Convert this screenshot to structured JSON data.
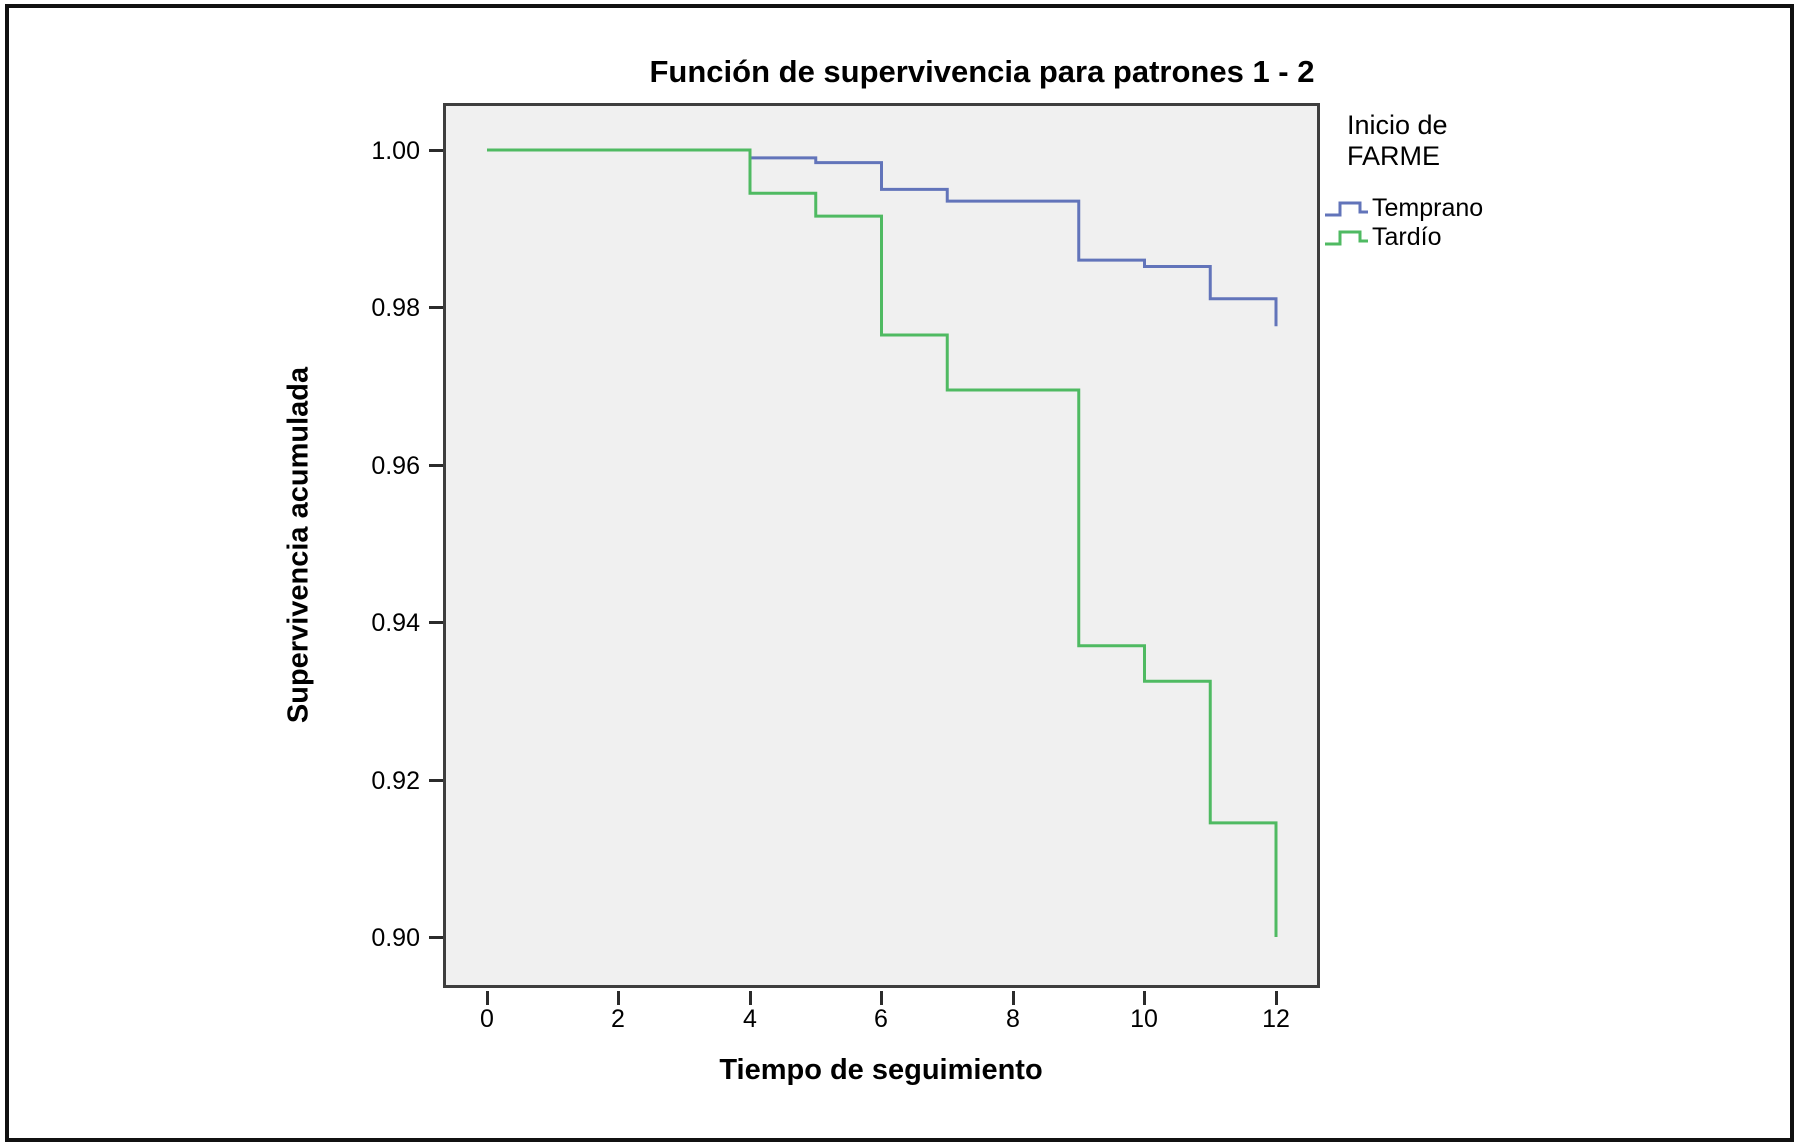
{
  "figure": {
    "title": "Función de supervivencia para patrones 1 - 2"
  },
  "axes": {
    "x": {
      "label": "Tiempo de seguimiento",
      "ticks": [
        "0",
        "2",
        "4",
        "6",
        "8",
        "10",
        "12"
      ]
    },
    "y": {
      "label": "Supervivencia acumulada",
      "ticks": [
        "1.00",
        "0.98",
        "0.96",
        "0.94",
        "0.92",
        "0.90"
      ]
    }
  },
  "legend": {
    "title_line1": "Inicio de",
    "title_line2": "FARME",
    "items": [
      {
        "label": "Temprano",
        "color": "#6274ba"
      },
      {
        "label": "Tardío",
        "color": "#4fba62"
      }
    ]
  },
  "chart_data": {
    "type": "line",
    "subtype": "kaplan-meier-step-survival",
    "title": "Función de supervivencia para patrones 1 - 2",
    "xlabel": "Tiempo de seguimiento",
    "ylabel": "Supervivencia acumulada",
    "xlim": [
      -0.67,
      12.67
    ],
    "ylim": [
      0.8935,
      1.0065
    ],
    "xticks": [
      0,
      2,
      4,
      6,
      8,
      10,
      12
    ],
    "yticks": [
      1.0,
      0.98,
      0.96,
      0.94,
      0.92,
      0.9
    ],
    "grid": false,
    "plot_background": "#f0f0f0",
    "legend_position": "right",
    "legend_title": "Inicio de FARME",
    "step_format": "[time, cumulative_survival_after_event]; curve is flat between listed times and ends with the drop at t=12",
    "series": [
      {
        "name": "Temprano",
        "color": "#6274ba",
        "steps": [
          [
            0,
            1.0
          ],
          [
            4,
            0.999
          ],
          [
            5,
            0.9984
          ],
          [
            6,
            0.995
          ],
          [
            7,
            0.9935
          ],
          [
            9,
            0.986
          ],
          [
            10,
            0.9852
          ],
          [
            11,
            0.9811
          ],
          [
            12,
            0.9776
          ]
        ]
      },
      {
        "name": "Tardío",
        "color": "#4fba62",
        "steps": [
          [
            0,
            1.0
          ],
          [
            4,
            0.9945
          ],
          [
            5,
            0.9916
          ],
          [
            6,
            0.9765
          ],
          [
            7,
            0.9695
          ],
          [
            9,
            0.937
          ],
          [
            10,
            0.9325
          ],
          [
            11,
            0.9145
          ],
          [
            12,
            0.9
          ]
        ]
      }
    ]
  }
}
